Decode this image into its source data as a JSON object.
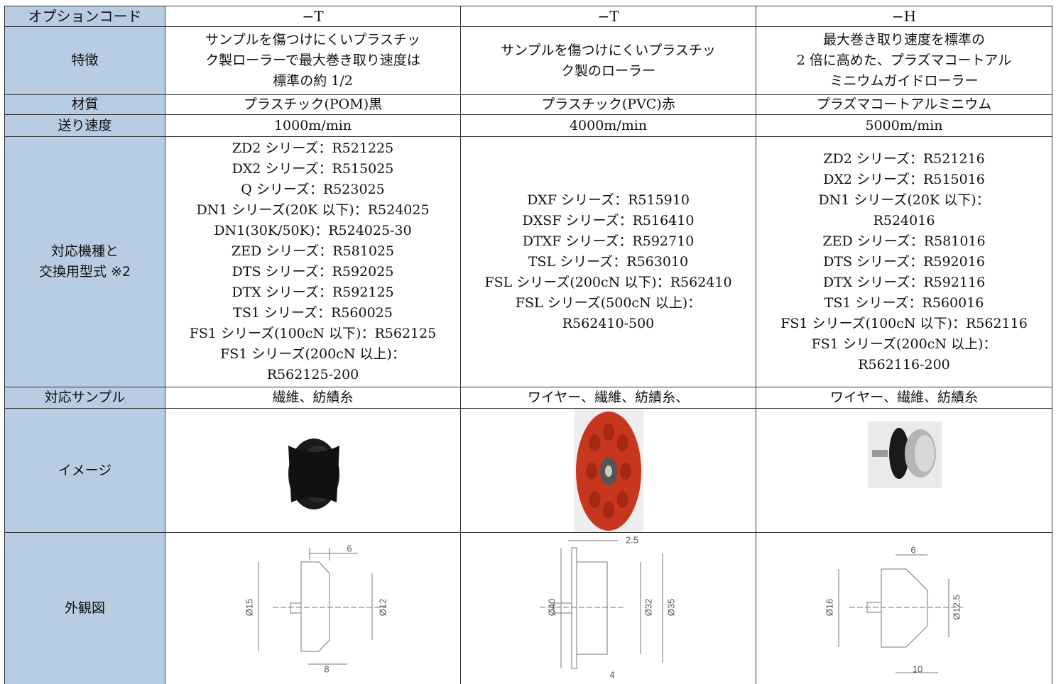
{
  "table": {
    "header": [
      "オプションコード",
      "−T",
      "−T",
      "−H"
    ],
    "rows": [
      {
        "label": [
          "特徴"
        ],
        "cells": [
          [
            "サンプルを傷つけにくいプラスチッ",
            "ク製ローラーで最大巻き取り速度は",
            "標準の約 1/2"
          ],
          [
            "サンプルを傷つけにくいプラスチッ",
            "ク製のローラー"
          ],
          [
            "最大巻き取り速度を標準の",
            "2 倍に高めた、プラズマコートアル",
            "ミニウムガイドローラー"
          ]
        ]
      },
      {
        "label": [
          "材質"
        ],
        "cells": [
          [
            "プラスチック(POM)黒"
          ],
          [
            "プラスチック(PVC)赤"
          ],
          [
            "プラズマコートアルミニウム"
          ]
        ]
      },
      {
        "label": [
          "送り速度"
        ],
        "cells": [
          [
            "1000m/min"
          ],
          [
            "4000m/min"
          ],
          [
            "5000m/min"
          ]
        ]
      },
      {
        "label": [
          "対応機種と",
          "交換用型式 ※2"
        ],
        "cells": [
          [
            "ZD2 シリーズ：R521225",
            "DX2 シリーズ：R515025",
            "Q シリーズ：R523025",
            "DN1 シリーズ(20K 以下)：R524025",
            "DN1(30K/50K)：R524025-30",
            "ZED シリーズ：R581025",
            "DTS シリーズ：R592025",
            "DTX シリーズ：R592125",
            "TS1 シリーズ：R560025",
            "FS1 シリーズ(100cN 以下)：R562125",
            "FS1 シリーズ(200cN 以上)：",
            "R562125-200"
          ],
          [
            "DXF シリーズ：R515910",
            "DXSF シリーズ：R516410",
            "DTXF シリーズ：R592710",
            "TSL シリーズ：R563010",
            "FSL シリーズ(200cN 以下)：R562410",
            "FSL シリーズ(500cN 以上)：",
            "R562410-500"
          ],
          [
            "ZD2 シリーズ：R521216",
            "DX2 シリーズ：R515016",
            "DN1 シリーズ(20K 以下)：",
            "R524016",
            "ZED シリーズ：R581016",
            "DTS シリーズ：R592016",
            "DTX シリーズ：R592116",
            "TS1 シリーズ：R560016",
            "FS1 シリーズ(100cN 以下)：R562116",
            "FS1 シリーズ(200cN 以上)：",
            "R562116-200"
          ]
        ]
      },
      {
        "label": [
          "対応サンプル"
        ],
        "cells": [
          [
            "繊維、紡績糸"
          ],
          [
            "ワイヤー、繊維、紡績糸、"
          ],
          [
            "ワイヤー、繊維、紡績糸"
          ]
        ]
      },
      {
        "label": [
          "イメージ"
        ]
      },
      {
        "label": [
          "外観図"
        ],
        "drawings": [
          [
            "6",
            "Ø15",
            "Ø12",
            "8"
          ],
          [
            "2.5",
            "Ø40",
            "Ø32",
            "Ø35",
            "4"
          ],
          [
            "6",
            "Ø16",
            "Ø12.5",
            "10"
          ]
        ]
      }
    ]
  }
}
